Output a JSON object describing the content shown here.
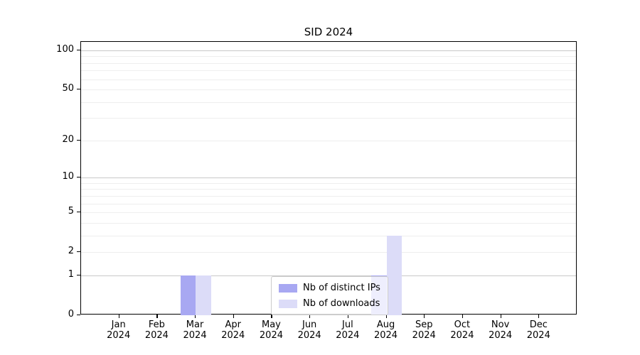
{
  "chart": {
    "title": "SID 2024"
  },
  "chart_data": {
    "type": "bar",
    "title": "SID 2024",
    "months": [
      "Jan",
      "Feb",
      "Mar",
      "Apr",
      "May",
      "Jun",
      "Jul",
      "Aug",
      "Sep",
      "Oct",
      "Nov",
      "Dec"
    ],
    "year": "2024",
    "series": [
      {
        "name": "Nb of distinct IPs",
        "key": "distinct-ips",
        "color": "#a8a8f2",
        "values": [
          0,
          0,
          1,
          0,
          0,
          0,
          0,
          1,
          0,
          0,
          0,
          0
        ]
      },
      {
        "name": "Nb of downloads",
        "key": "downloads",
        "color": "#dcdcf8",
        "values": [
          0,
          0,
          1,
          0,
          0,
          0,
          0,
          3,
          0,
          0,
          0,
          0
        ]
      }
    ],
    "yscale": "log1p",
    "ylim": [
      0,
      116
    ],
    "y_ticks": [
      0,
      1,
      2,
      5,
      10,
      20,
      50,
      100
    ],
    "y_major_gridlines": [
      1,
      10,
      100
    ],
    "y_minor_gridlines": [
      2,
      3,
      4,
      5,
      6,
      7,
      8,
      9,
      20,
      30,
      40,
      50,
      60,
      70,
      80,
      90
    ],
    "grid": true,
    "legend_position": "lower center",
    "bar_width_fraction": 0.4
  },
  "colors": {
    "major_grid": "#c8c8c8",
    "minor_grid": "#eeeeee",
    "spine": "#000000",
    "text": "#000000",
    "legend_border": "#cccccc",
    "legend_bg": "rgba(255,255,255,0.8)"
  }
}
